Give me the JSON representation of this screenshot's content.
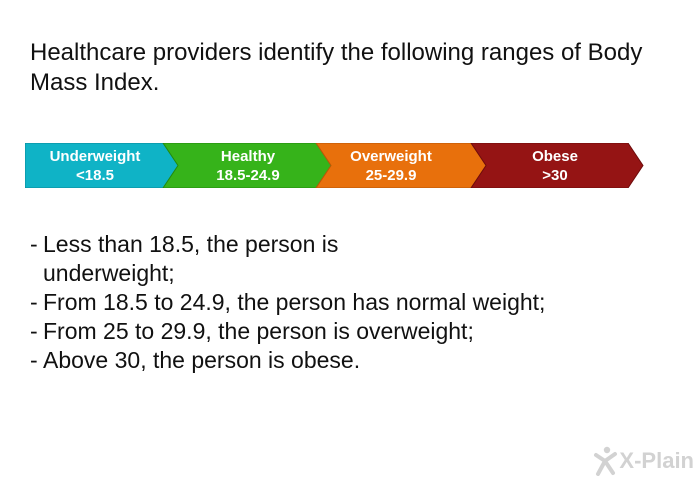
{
  "heading": "Healthcare providers identify the following ranges of Body Mass Index.",
  "bmi_scale": [
    {
      "name": "Underweight",
      "range": "<18.5",
      "color": "#0fb3c6"
    },
    {
      "name": "Healthy",
      "range": "18.5-24.9",
      "color": "#36b31a"
    },
    {
      "name": "Overweight",
      "range": "25-29.9",
      "color": "#e8700c"
    },
    {
      "name": "Obese",
      "range": ">30",
      "color": "#951414"
    }
  ],
  "bullets": [
    {
      "dash": "-",
      "text": "Less than 18.5, the person is underweight;"
    },
    {
      "dash": "-",
      "text": "From 18.5 to 24.9, the person has normal weight;"
    },
    {
      "dash": "-",
      "text": "From 25 to 29.9, the person is overweight;"
    },
    {
      "dash": "-",
      "text": "Above 30, the person is obese."
    }
  ],
  "logo": {
    "text": "X-Plain",
    "icon": "x-plain-figure-icon"
  }
}
